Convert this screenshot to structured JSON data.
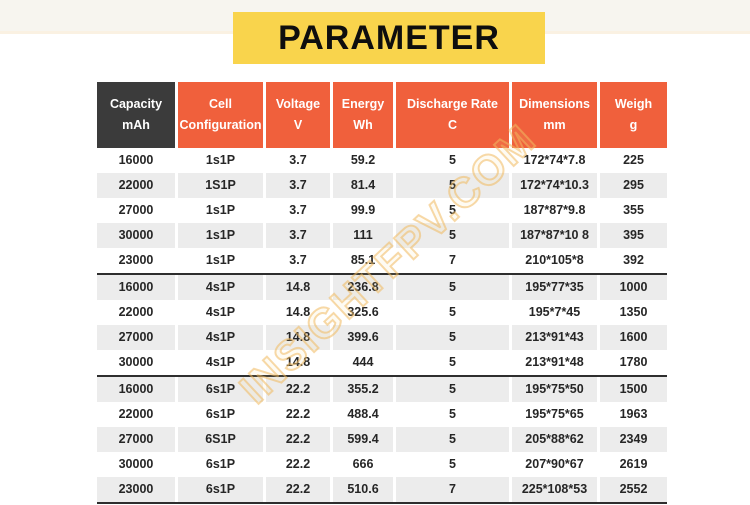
{
  "title": {
    "banner_label": "PARAMETER"
  },
  "watermark": {
    "text": "INSIGHTFPV.COM"
  },
  "colors": {
    "accent_orange": "#F0603C",
    "header_dark": "#3B3B3B",
    "banner_yellow": "#F9D44C",
    "stripe_gray": "#ECECEC",
    "divider_dark": "#2E2E2E"
  },
  "table": {
    "columns": [
      {
        "line1": "Capacity",
        "line2": "mAh"
      },
      {
        "line1": "Cell",
        "line2": "Configuration"
      },
      {
        "line1": "Voltage",
        "line2": "V"
      },
      {
        "line1": "Energy",
        "line2": "Wh"
      },
      {
        "line1": "Discharge Rate",
        "line2": "C"
      },
      {
        "line1": "Dimensions",
        "line2": "mm"
      },
      {
        "line1": "Weigh",
        "line2": "g"
      }
    ],
    "rows": [
      [
        "16000",
        "1s1P",
        "3.7",
        "59.2",
        "5",
        "172*74*7.8",
        "225"
      ],
      [
        "22000",
        "1S1P",
        "3.7",
        "81.4",
        "5",
        "172*74*10.3",
        "295"
      ],
      [
        "27000",
        "1s1P",
        "3.7",
        "99.9",
        "5",
        "187*87*9.8",
        "355"
      ],
      [
        "30000",
        "1s1P",
        "3.7",
        "111",
        "5",
        "187*87*10 8",
        "395"
      ],
      [
        "23000",
        "1s1P",
        "3.7",
        "85.1",
        "7",
        "210*105*8",
        "392"
      ],
      [
        "16000",
        "4s1P",
        "14.8",
        "236.8",
        "5",
        "195*77*35",
        "1000"
      ],
      [
        "22000",
        "4s1P",
        "14.8",
        "325.6",
        "5",
        "195*7*45",
        "1350"
      ],
      [
        "27000",
        "4s1P",
        "14.8",
        "399.6",
        "5",
        "213*91*43",
        "1600"
      ],
      [
        "30000",
        "4s1P",
        "14.8",
        "444",
        "5",
        "213*91*48",
        "1780"
      ],
      [
        "16000",
        "6s1P",
        "22.2",
        "355.2",
        "5",
        "195*75*50",
        "1500"
      ],
      [
        "22000",
        "6s1P",
        "22.2",
        "488.4",
        "5",
        "195*75*65",
        "1963"
      ],
      [
        "27000",
        "6S1P",
        "22.2",
        "599.4",
        "5",
        "205*88*62",
        "2349"
      ],
      [
        "30000",
        "6s1P",
        "22.2",
        "666",
        "5",
        "207*90*67",
        "2619"
      ],
      [
        "23000",
        "6s1P",
        "22.2",
        "510.6",
        "7",
        "225*108*53",
        "2552"
      ]
    ],
    "group_divider_after_rows": [
      4,
      8,
      13
    ]
  }
}
